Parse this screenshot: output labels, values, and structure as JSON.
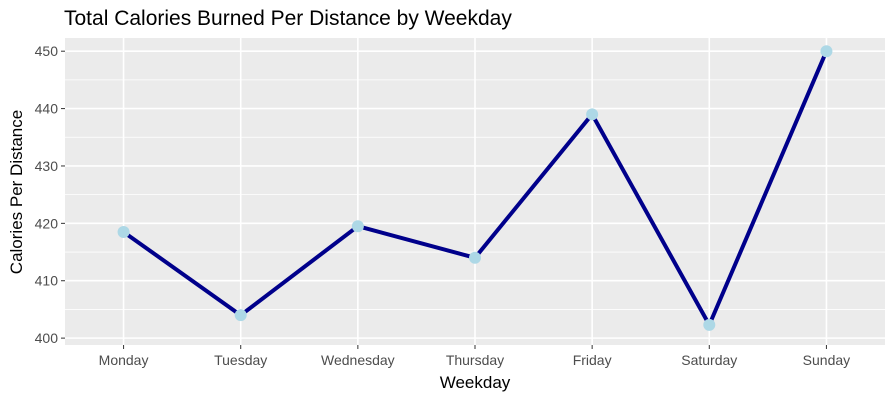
{
  "chart_data": {
    "type": "line",
    "title": "Total Calories Burned Per Distance by Weekday",
    "xlabel": "Weekday",
    "ylabel": "Calories Per Distance",
    "categories": [
      "Monday",
      "Tuesday",
      "Wednesday",
      "Thursday",
      "Friday",
      "Saturday",
      "Sunday"
    ],
    "series": [
      {
        "values": [
          418.5,
          404,
          419.5,
          414,
          439,
          402.3,
          450
        ]
      }
    ],
    "ylim": [
      398.8,
      452.3
    ],
    "yticks": [
      400,
      410,
      420,
      430,
      440,
      450
    ],
    "ytick_labels": [
      "400",
      "410",
      "420",
      "430",
      "440",
      "450"
    ],
    "grid": true,
    "colors": {
      "line": "#00008b",
      "points": "#add8e6",
      "panel": "#ebebeb",
      "grid": "#ffffff"
    }
  }
}
